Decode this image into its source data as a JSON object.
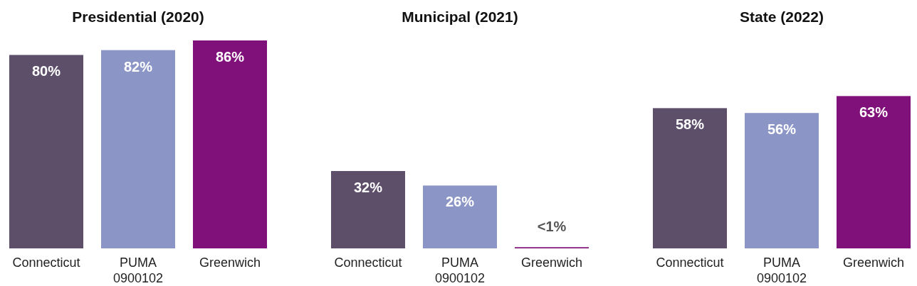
{
  "chart_data": [
    {
      "type": "bar",
      "title": "Presidential (2020)",
      "categories": [
        "Connecticut",
        "PUMA 0900102",
        "Greenwich"
      ],
      "values": [
        80,
        82,
        86
      ],
      "colors": [
        "#5d4f6a",
        "#8c96c6",
        "#81117a"
      ],
      "value_labels": [
        "80%",
        "82%",
        "86%"
      ]
    },
    {
      "type": "bar",
      "title": "Municipal (2021)",
      "categories": [
        "Connecticut",
        "PUMA 0900102",
        "Greenwich"
      ],
      "values": [
        32,
        26,
        0.5
      ],
      "colors": [
        "#5d4f6a",
        "#8c96c6",
        "#81117a"
      ],
      "value_labels": [
        "32%",
        "26%",
        "<1%"
      ]
    },
    {
      "type": "bar",
      "title": "State (2022)",
      "categories": [
        "Connecticut",
        "PUMA 0900102",
        "Greenwich"
      ],
      "values": [
        58,
        56,
        63
      ],
      "colors": [
        "#5d4f6a",
        "#8c96c6",
        "#81117a"
      ],
      "value_labels": [
        "58%",
        "56%",
        "63%"
      ]
    }
  ]
}
